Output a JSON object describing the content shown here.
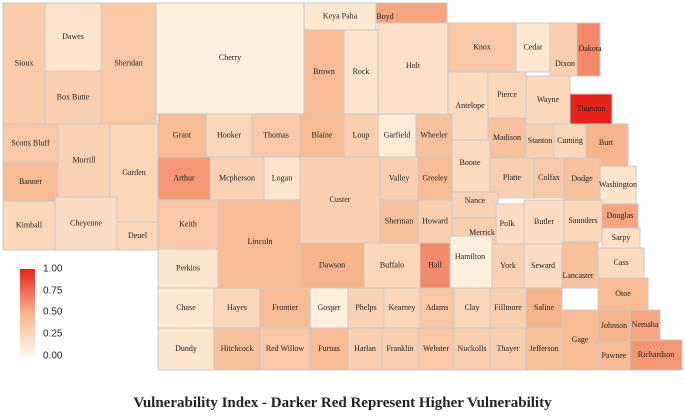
{
  "caption": "Vulnerability Index - Darker Red Represent Higher Vulnerability",
  "legend": {
    "ticks": [
      "1.00",
      "0.75",
      "0.50",
      "0.25",
      "0.00"
    ],
    "color_low": "#fff7e6",
    "color_high": "#e8231b"
  },
  "counties": [
    {
      "name": "Sioux",
      "v": 0.32
    },
    {
      "name": "Dawes",
      "v": 0.15
    },
    {
      "name": "Sheridan",
      "v": 0.35
    },
    {
      "name": "Cherry",
      "v": 0.05
    },
    {
      "name": "Keya Paha",
      "v": 0.12
    },
    {
      "name": "Boyd",
      "v": 0.55
    },
    {
      "name": "Box Butte",
      "v": 0.3
    },
    {
      "name": "Brown",
      "v": 0.45
    },
    {
      "name": "Rock",
      "v": 0.15
    },
    {
      "name": "Holt",
      "v": 0.18
    },
    {
      "name": "Knox",
      "v": 0.35
    },
    {
      "name": "Cedar",
      "v": 0.12
    },
    {
      "name": "Dixon",
      "v": 0.3
    },
    {
      "name": "Dakota",
      "v": 0.65
    },
    {
      "name": "Thurston",
      "v": 1.0
    },
    {
      "name": "Antelope",
      "v": 0.22
    },
    {
      "name": "Pierce",
      "v": 0.25
    },
    {
      "name": "Wayne",
      "v": 0.25
    },
    {
      "name": "Scotts Bluff",
      "v": 0.35
    },
    {
      "name": "Morrill",
      "v": 0.28
    },
    {
      "name": "Garden",
      "v": 0.25
    },
    {
      "name": "Grant",
      "v": 0.45
    },
    {
      "name": "Hooker",
      "v": 0.25
    },
    {
      "name": "Thomas",
      "v": 0.35
    },
    {
      "name": "Blaine",
      "v": 0.45
    },
    {
      "name": "Loup",
      "v": 0.3
    },
    {
      "name": "Garfield",
      "v": 0.1
    },
    {
      "name": "Wheeler",
      "v": 0.4
    },
    {
      "name": "Madison",
      "v": 0.4
    },
    {
      "name": "Stanton",
      "v": 0.3
    },
    {
      "name": "Cuming",
      "v": 0.25
    },
    {
      "name": "Burt",
      "v": 0.5
    },
    {
      "name": "Banner",
      "v": 0.45
    },
    {
      "name": "Arthur",
      "v": 0.6
    },
    {
      "name": "Mcpherson",
      "v": 0.28
    },
    {
      "name": "Logan",
      "v": 0.15
    },
    {
      "name": "Custer",
      "v": 0.3
    },
    {
      "name": "Valley",
      "v": 0.3
    },
    {
      "name": "Greeley",
      "v": 0.45
    },
    {
      "name": "Boone",
      "v": 0.22
    },
    {
      "name": "Platte",
      "v": 0.3
    },
    {
      "name": "Colfax",
      "v": 0.35
    },
    {
      "name": "Dodge",
      "v": 0.4
    },
    {
      "name": "Washington",
      "v": 0.15
    },
    {
      "name": "Kimball",
      "v": 0.25
    },
    {
      "name": "Cheyenne",
      "v": 0.2
    },
    {
      "name": "Deuel",
      "v": 0.25
    },
    {
      "name": "Keith",
      "v": 0.35
    },
    {
      "name": "Lincoln",
      "v": 0.45
    },
    {
      "name": "Sherman",
      "v": 0.4
    },
    {
      "name": "Howard",
      "v": 0.3
    },
    {
      "name": "Nance",
      "v": 0.28
    },
    {
      "name": "Merrick",
      "v": 0.3
    },
    {
      "name": "Polk",
      "v": 0.2
    },
    {
      "name": "Butler",
      "v": 0.2
    },
    {
      "name": "Saunders",
      "v": 0.25
    },
    {
      "name": "Douglas",
      "v": 0.55
    },
    {
      "name": "Sarpy",
      "v": 0.18
    },
    {
      "name": "Perkins",
      "v": 0.15
    },
    {
      "name": "Dawson",
      "v": 0.5
    },
    {
      "name": "Buffalo",
      "v": 0.25
    },
    {
      "name": "Hall",
      "v": 0.65
    },
    {
      "name": "Hamilton",
      "v": 0.05
    },
    {
      "name": "York",
      "v": 0.28
    },
    {
      "name": "Seward",
      "v": 0.2
    },
    {
      "name": "Lancaster",
      "v": 0.4
    },
    {
      "name": "Cass",
      "v": 0.22
    },
    {
      "name": "Chase",
      "v": 0.12
    },
    {
      "name": "Hayes",
      "v": 0.25
    },
    {
      "name": "Frontier",
      "v": 0.45
    },
    {
      "name": "Gosper",
      "v": 0.05
    },
    {
      "name": "Phelps",
      "v": 0.28
    },
    {
      "name": "Kearney",
      "v": 0.25
    },
    {
      "name": "Adams",
      "v": 0.35
    },
    {
      "name": "Clay",
      "v": 0.25
    },
    {
      "name": "Fillmore",
      "v": 0.3
    },
    {
      "name": "Saline",
      "v": 0.5
    },
    {
      "name": "Otoe",
      "v": 0.45
    },
    {
      "name": "Dundy",
      "v": 0.15
    },
    {
      "name": "Hitchcock",
      "v": 0.4
    },
    {
      "name": "Red Willow",
      "v": 0.35
    },
    {
      "name": "Furnas",
      "v": 0.45
    },
    {
      "name": "Harlan",
      "v": 0.3
    },
    {
      "name": "Franklin",
      "v": 0.3
    },
    {
      "name": "Webster",
      "v": 0.35
    },
    {
      "name": "Nuckolls",
      "v": 0.3
    },
    {
      "name": "Thayer",
      "v": 0.3
    },
    {
      "name": "Jefferson",
      "v": 0.4
    },
    {
      "name": "Gage",
      "v": 0.45
    },
    {
      "name": "Johnson",
      "v": 0.5
    },
    {
      "name": "Nemaha",
      "v": 0.55
    },
    {
      "name": "Pawnee",
      "v": 0.45
    },
    {
      "name": "Richardson",
      "v": 0.6
    }
  ]
}
